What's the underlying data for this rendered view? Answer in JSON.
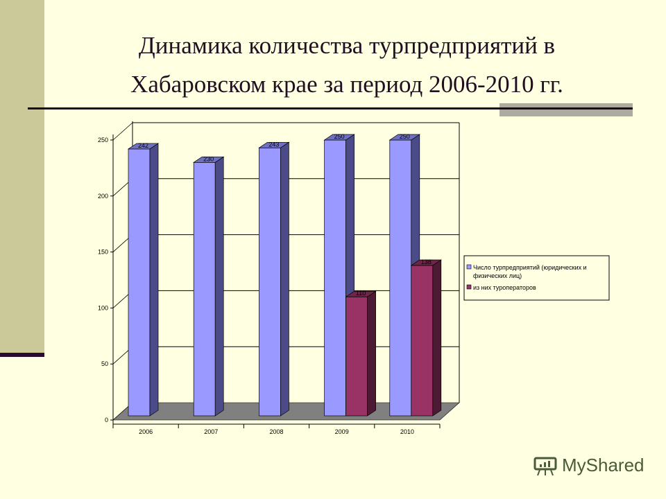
{
  "slide": {
    "title_line1": "Динамика количества турпредприятий в",
    "title_line2": "Хабаровском крае за период 2006-2010 гг."
  },
  "chart_data": {
    "type": "bar",
    "title": "Динамика количества турпредприятий в Хабаровском крае за период 2006-2010 гг.",
    "xlabel": "",
    "ylabel": "",
    "categories": [
      "2006",
      "2007",
      "2008",
      "2009",
      "2010"
    ],
    "series": [
      {
        "name": "Число турпредприятий (юридических и физических лиц)",
        "color": "#9999FF",
        "values": [
          242,
          230,
          243,
          250,
          250
        ]
      },
      {
        "name": "из них туроператоров",
        "color": "#993366",
        "values": [
          null,
          null,
          null,
          110,
          138
        ]
      }
    ],
    "ylim": [
      0,
      250
    ],
    "yticks": [
      "0",
      "50",
      "100",
      "150",
      "200",
      "250"
    ],
    "grid": true,
    "legend_position": "right",
    "style": "3d-column"
  },
  "legend": {
    "item1_line1": "Число турпредприятий (юридических и",
    "item1_line2": "физических лиц)",
    "item2": "из них туроператоров"
  },
  "watermark": {
    "text": "MyShared"
  }
}
